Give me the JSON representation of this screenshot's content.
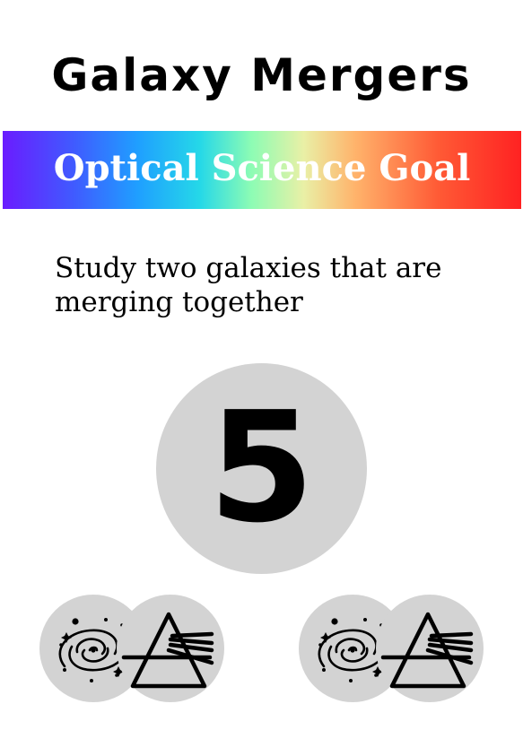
{
  "card": {
    "title": "Galaxy Mergers",
    "banner": {
      "label": "Optical Science Goal",
      "gradient_colors": [
        "#6a1cff",
        "#3f5cff",
        "#1f9fff",
        "#25d8e8",
        "#8dfcb4",
        "#e9f0a6",
        "#ffb36b",
        "#ff5a35",
        "#ff2222"
      ]
    },
    "goal_description": "Study two galaxies that are merging together",
    "points": "5",
    "circle_color": "#d3d3d3",
    "requirements": [
      {
        "icons": [
          "galaxy-icon",
          "prism-icon"
        ]
      },
      {
        "icons": [
          "galaxy-icon",
          "prism-icon"
        ]
      }
    ]
  }
}
